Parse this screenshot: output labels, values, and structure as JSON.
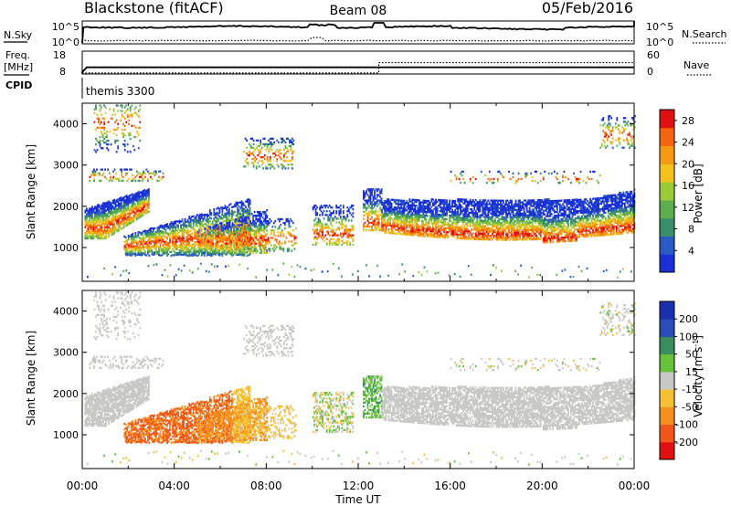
{
  "header": {
    "title": "Blackstone (fitACF)",
    "beam": "Beam 08",
    "date": "05/Feb/2016"
  },
  "side_labels": {
    "nsky": "N.Sky",
    "freq_line1": "Freq.",
    "freq_line2": "[MHz]",
    "cpid": "CPID",
    "nsearch": "N.Search",
    "nave": "Nave"
  },
  "cpid_value": "themis 3300",
  "colors": {
    "power_scale": [
      "#1a2fd6",
      "#2a5ac4",
      "#3a8f6a",
      "#5fae4e",
      "#9ccb3a",
      "#f2c21b",
      "#f59a12",
      "#f5650e",
      "#e01010"
    ],
    "velocity_scale": [
      "#e01010",
      "#f0561a",
      "#f5901e",
      "#f5c034",
      "#c8c8c4",
      "#66c23a",
      "#3a8d5f",
      "#2a4bb8",
      "#1a2fb0"
    ]
  },
  "chart_data": [
    {
      "type": "line",
      "panel": "noise",
      "ylabel_left": "N.Sky",
      "ylabel_right": "N.Search",
      "left_ticks": [
        "10^5",
        "10^0"
      ],
      "right_ticks": [
        "10^5",
        "10^0"
      ],
      "xlim": [
        0,
        24
      ]
    },
    {
      "type": "line",
      "panel": "frequency",
      "ylabel_left": "Freq. [MHz]",
      "ylabel_right": "Nave",
      "left_ticks": [
        18,
        8
      ],
      "right_ticks": [
        60,
        0
      ],
      "xlim": [
        0,
        24
      ],
      "freq_series": {
        "x": [
          0,
          0.2,
          24
        ],
        "y": [
          8,
          10.5,
          10.5
        ]
      },
      "nave_series": {
        "x": [
          0,
          12.9,
          12.9,
          24
        ],
        "y": [
          0,
          0,
          30,
          30
        ]
      }
    },
    {
      "type": "heatmap",
      "panel": "power",
      "ylabel": "Slant Range [km]",
      "xlabel": "Time UT",
      "yticks": [
        1000,
        2000,
        3000,
        4000
      ],
      "ylim": [
        180,
        4500
      ],
      "xlim": [
        0,
        24
      ],
      "xticks": [
        "00:00",
        "04:00",
        "08:00",
        "12:00",
        "16:00",
        "20:00",
        "00:00"
      ],
      "colorbar_label": "Power [dB]",
      "colorbar_ticks": [
        4,
        8,
        12,
        16,
        20,
        24,
        28
      ],
      "colorbar_range": [
        0,
        30
      ]
    },
    {
      "type": "heatmap",
      "panel": "velocity",
      "ylabel": "Slant Range [km]",
      "xlabel": "Time UT",
      "yticks": [
        1000,
        2000,
        3000,
        4000
      ],
      "ylim": [
        180,
        4500
      ],
      "xlim": [
        0,
        24
      ],
      "xticks": [
        "00:00",
        "04:00",
        "08:00",
        "12:00",
        "16:00",
        "20:00",
        "00:00"
      ],
      "colorbar_label": "Velocity [m s^-1]",
      "colorbar_ticks": [
        200,
        100,
        50,
        15,
        -15,
        -50,
        -100,
        -200
      ],
      "colorbar_range": [
        -250,
        250
      ]
    }
  ]
}
